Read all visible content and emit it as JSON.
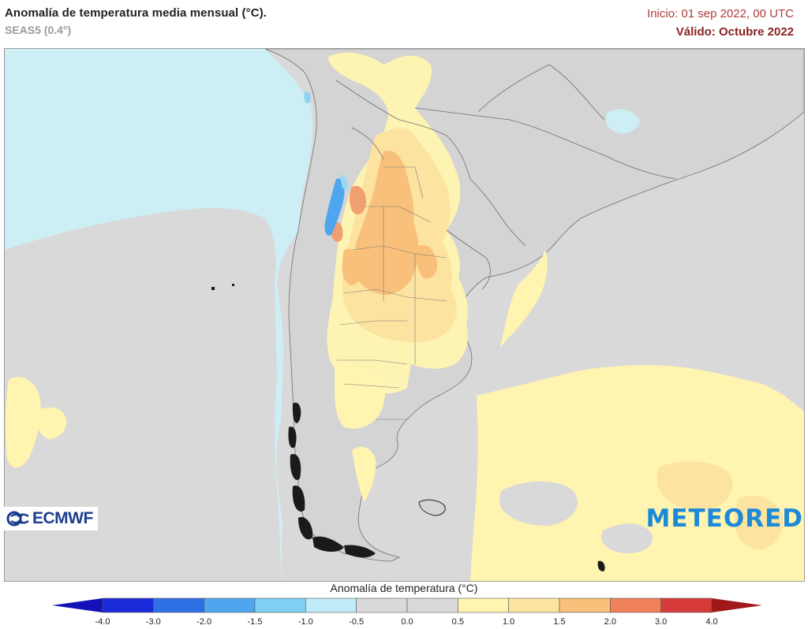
{
  "header": {
    "title": "Anomalía de temperatura media mensual (°C).",
    "model": "SEAS5 (0.4°)",
    "init": "Inicio: 01 sep 2022, 00 UTC",
    "valid": "Válido: Octubre 2022"
  },
  "logos": {
    "left": "ECMWF",
    "right": "METEORED"
  },
  "legend": {
    "title": "Anomalía de temperatura (°C)",
    "ticks": [
      "-4.0",
      "-3.0",
      "-2.0",
      "-1.5",
      "-1.0",
      "-0.5",
      "0.0",
      "0.5",
      "1.0",
      "1.5",
      "2.0",
      "3.0",
      "4.0"
    ],
    "colors": [
      "#1a2bd9",
      "#2f6fe6",
      "#4ea6ee",
      "#7fd0f2",
      "#bfeaf7",
      "#d9d9d9",
      "#d9d9d9",
      "#fff4b0",
      "#fde3a0",
      "#f8c07a",
      "#f0805a",
      "#d63a3a"
    ],
    "under_color": "#1212b8",
    "over_color": "#a01818"
  },
  "colors": {
    "ocean_pacific": "#cdeef5",
    "land": "#d6d6d6",
    "ocean_atlantic": "#d9d9d9",
    "anom_low": "#fff4b0",
    "anom_mid": "#fde3a0",
    "anom_high": "#f8c07a",
    "anom_very_high": "#f0805a",
    "anom_cold": "#4ea6ee"
  }
}
